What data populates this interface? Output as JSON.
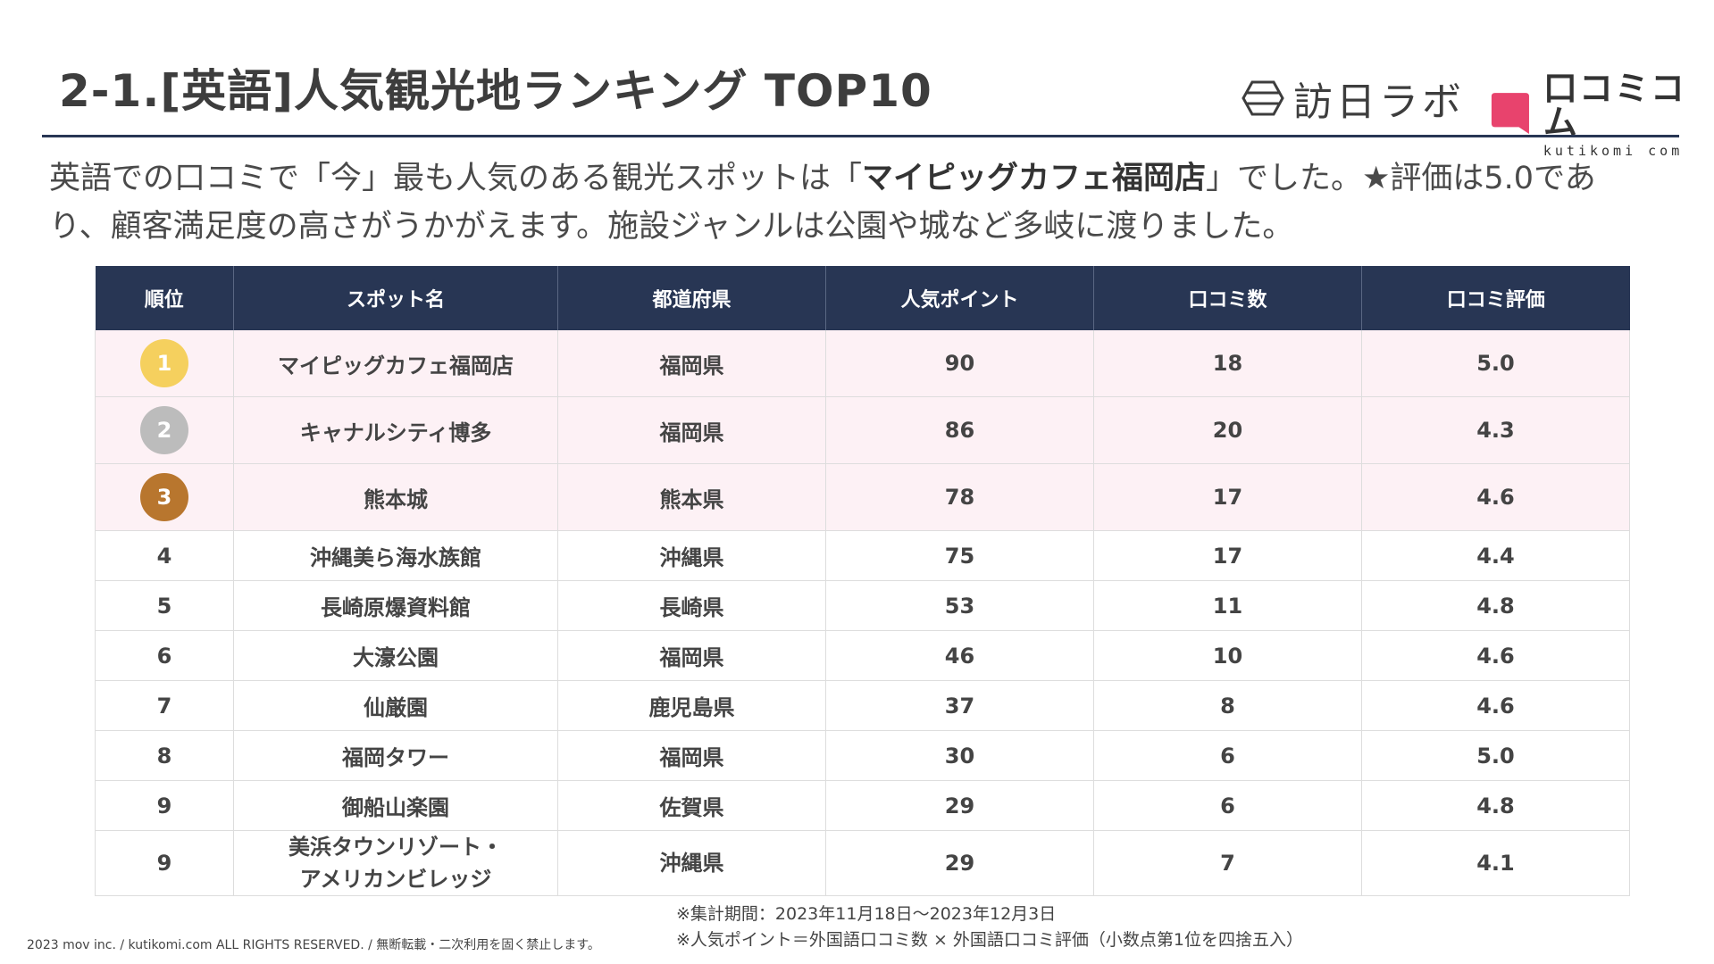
{
  "header": {
    "title": "2-1.[英語]人気観光地ランキング TOP10",
    "logo_lab_text": "訪日ラボ",
    "logo_kutikomi_name": "口コミコム",
    "logo_kutikomi_sub": "kutikomi com"
  },
  "summary": {
    "part1": "英語での口コミで「今」最も人気のある観光スポットは「",
    "highlight": "マイピッグカフェ福岡店",
    "part2": "」でした。★評価は5.0であり、顧客満足度の高さがうかがえます。施設ジャンルは公園や城など多岐に渡りました。"
  },
  "table": {
    "headers": [
      "順位",
      "スポット名",
      "都道府県",
      "人気ポイント",
      "口コミ数",
      "口コミ評価"
    ],
    "rows": [
      {
        "rank": "1",
        "name": "マイピッグカフェ福岡店",
        "name_line2": "",
        "prefecture": "福岡県",
        "points": "90",
        "reviews": "18",
        "rating": "5.0"
      },
      {
        "rank": "2",
        "name": "キャナルシティ博多",
        "name_line2": "",
        "prefecture": "福岡県",
        "points": "86",
        "reviews": "20",
        "rating": "4.3"
      },
      {
        "rank": "3",
        "name": "熊本城",
        "name_line2": "",
        "prefecture": "熊本県",
        "points": "78",
        "reviews": "17",
        "rating": "4.6"
      },
      {
        "rank": "4",
        "name": "沖縄美ら海水族館",
        "name_line2": "",
        "prefecture": "沖縄県",
        "points": "75",
        "reviews": "17",
        "rating": "4.4"
      },
      {
        "rank": "5",
        "name": "長崎原爆資料館",
        "name_line2": "",
        "prefecture": "長崎県",
        "points": "53",
        "reviews": "11",
        "rating": "4.8"
      },
      {
        "rank": "6",
        "name": "大濠公園",
        "name_line2": "",
        "prefecture": "福岡県",
        "points": "46",
        "reviews": "10",
        "rating": "4.6"
      },
      {
        "rank": "7",
        "name": "仙厳園",
        "name_line2": "",
        "prefecture": "鹿児島県",
        "points": "37",
        "reviews": "8",
        "rating": "4.6"
      },
      {
        "rank": "8",
        "name": "福岡タワー",
        "name_line2": "",
        "prefecture": "福岡県",
        "points": "30",
        "reviews": "6",
        "rating": "5.0"
      },
      {
        "rank": "9",
        "name": "御船山楽園",
        "name_line2": "",
        "prefecture": "佐賀県",
        "points": "29",
        "reviews": "6",
        "rating": "4.8"
      },
      {
        "rank": "9",
        "name": "美浜タウンリゾート・",
        "name_line2": "アメリカンビレッジ",
        "prefecture": "沖縄県",
        "points": "29",
        "reviews": "7",
        "rating": "4.1"
      }
    ]
  },
  "notes": {
    "period": "※集計期間：2023年11月18日～2023年12月3日",
    "formula": "※人気ポイント＝外国語口コミ数 × 外国語口コミ評価（小数点第1位を四捨五入）"
  },
  "footer": {
    "copyright": "2023 mov inc. / kutikomi.com ALL RIGHTS RESERVED. / 無断転載・二次利用を固く禁止します。"
  },
  "colors": {
    "header_bg": "#283654",
    "top_row_bg": "#fdf1f5",
    "gold": "#f5d05e",
    "silver": "#bcbcbc",
    "bronze": "#b8762e",
    "brand_pink": "#e8436d"
  }
}
